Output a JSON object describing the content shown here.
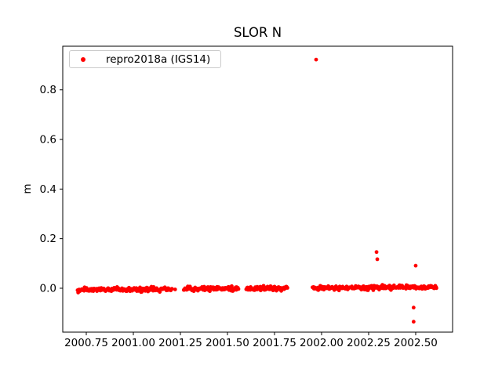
{
  "figure": {
    "background": "#ffffff",
    "frame_color": "#000000"
  },
  "chart_data": {
    "type": "scatter",
    "title": "SLOR N",
    "xlabel": "",
    "ylabel": "m",
    "grid": false,
    "legend": {
      "position": "upper left",
      "border_color": "#cccccc"
    },
    "series": [
      {
        "name": "repro2018a (IGS14)",
        "color": "#ff0000",
        "marker": "dot"
      }
    ],
    "xlim": [
      2000.625,
      2002.696
    ],
    "ylim": [
      -0.177,
      0.976
    ],
    "x_ticks": [
      2000.75,
      2001.0,
      2001.25,
      2001.5,
      2001.75,
      2002.0,
      2002.25,
      2002.5
    ],
    "x_tick_labels": [
      "2000.75",
      "2001.00",
      "2001.25",
      "2001.50",
      "2001.75",
      "2002.00",
      "2002.25",
      "2002.50"
    ],
    "y_ticks": [
      0.0,
      0.2,
      0.4,
      0.6,
      0.8
    ],
    "y_tick_labels": [
      "0.0",
      "0.2",
      "0.4",
      "0.6",
      "0.8"
    ],
    "outlier_points": [
      {
        "x": 2001.971,
        "y": 0.922
      },
      {
        "x": 2002.292,
        "y": 0.146
      },
      {
        "x": 2002.296,
        "y": 0.117
      },
      {
        "x": 2002.5,
        "y": 0.091
      },
      {
        "x": 2002.489,
        "y": -0.078
      },
      {
        "x": 2002.489,
        "y": -0.135
      }
    ],
    "band_segments": [
      {
        "t_start": 2000.703,
        "t_end": 2001.205,
        "points": 170
      },
      {
        "t_start": 2001.222,
        "t_end": 2001.222,
        "points": 1
      },
      {
        "t_start": 2001.268,
        "t_end": 2001.558,
        "points": 100
      },
      {
        "t_start": 2001.6,
        "t_end": 2001.818,
        "points": 75
      },
      {
        "t_start": 2001.953,
        "t_end": 2002.61,
        "points": 225
      }
    ],
    "band_trend": {
      "base": -0.007,
      "ref_year": 2000.7,
      "slope_per_year": 0.0063,
      "noise_sigma": 0.0042,
      "noise_clip": 0.0105
    }
  }
}
